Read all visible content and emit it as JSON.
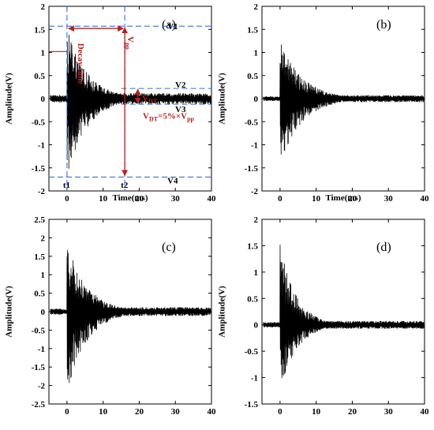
{
  "chart_data": [
    {
      "type": "line",
      "panel_label": "(a)",
      "xlabel": "Time(ms)",
      "ylabel": "Amplitude(V)",
      "xlim": [
        -5,
        40
      ],
      "ylim": [
        -2,
        2
      ],
      "xticks": [
        "0",
        "10",
        "20",
        "30",
        "40"
      ],
      "yticks": [
        "-2",
        "-1.5",
        "-1",
        "-0.5",
        "0",
        "0.5",
        "1",
        "1.5",
        "2"
      ],
      "signal": {
        "onset_ms": 0,
        "peak_pos": 1.55,
        "peak_neg": -1.75,
        "decay_ms": 5.5,
        "noise": 0.08
      },
      "annotations": {
        "decay_time": "Decay time",
        "vpp": "V",
        "vpp_sub": "pp",
        "vdt": "V",
        "vdt_sub": "DT",
        "vdt_formula_a": "V",
        "vdt_formula_sub": "DT",
        "vdt_formula_mid": "=5%×V",
        "vdt_formula_sub2": "pp",
        "v1": "V1",
        "v2": "V2",
        "v3": "V3",
        "v4": "V4",
        "t1": "t1",
        "t2": "t2",
        "levels": {
          "V1": 1.57,
          "V2": 0.22,
          "V3": -0.12,
          "V4": -1.7,
          "t1": 0,
          "t2": 16
        }
      }
    },
    {
      "type": "line",
      "panel_label": "(b)",
      "xlabel": "Time(ms)",
      "ylabel": "Amplitude(V)",
      "xlim": [
        -5,
        40
      ],
      "ylim": [
        -2,
        2
      ],
      "xticks": [
        "0",
        "10",
        "20",
        "30",
        "40"
      ],
      "yticks": [
        "-2",
        "-1.5",
        "-1",
        "-0.5",
        "0",
        "0.5",
        "1",
        "1.5",
        "2"
      ],
      "signal": {
        "onset_ms": 0,
        "peak_pos": 1.3,
        "peak_neg": -1.45,
        "decay_ms": 6,
        "noise": 0.05
      }
    },
    {
      "type": "line",
      "panel_label": "(c)",
      "xlabel": "",
      "ylabel": "Amplitude(V)",
      "xlim": [
        -5,
        40
      ],
      "ylim": [
        -2.5,
        2.5
      ],
      "xticks": [
        "0",
        "10",
        "20",
        "30",
        "40"
      ],
      "yticks": [
        "-2.5",
        "-2",
        "-1.5",
        "-1",
        "-0.5",
        "0",
        "0.5",
        "1",
        "1.5",
        "2",
        "2.5"
      ],
      "signal": {
        "onset_ms": 0,
        "peak_pos": 1.9,
        "peak_neg": -2.2,
        "decay_ms": 5.5,
        "noise": 0.08
      }
    },
    {
      "type": "line",
      "panel_label": "(d)",
      "xlabel": "",
      "ylabel": "Amplitude(V)",
      "xlim": [
        -5,
        40
      ],
      "ylim": [
        -1.5,
        2
      ],
      "xticks": [
        "0",
        "10",
        "20",
        "30",
        "40"
      ],
      "yticks": [
        "-1.5",
        "-1",
        "-0.5",
        "0",
        "0.5",
        "1",
        "1.5",
        "2"
      ],
      "signal": {
        "onset_ms": 0,
        "peak_pos": 1.55,
        "peak_neg": -1.3,
        "decay_ms": 4.5,
        "noise": 0.05
      }
    }
  ],
  "colors": {
    "trace": "#000000",
    "guide": "#3a6fd8",
    "annotation": "#b0231d"
  }
}
